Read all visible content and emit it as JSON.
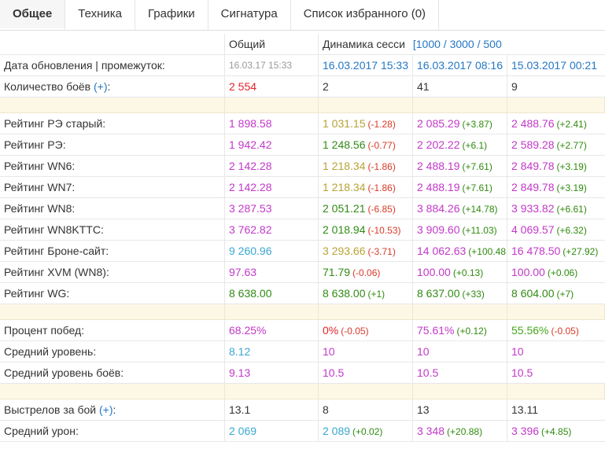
{
  "tabs": [
    "Общее",
    "Техника",
    "Графики",
    "Сигнатура",
    "Список избранного (0)"
  ],
  "header": {
    "general": "Общий",
    "dynamics": "Динамика сесси",
    "ranges": "[1000 / 3000 / 500"
  },
  "update": {
    "label": "Дата обновления | промежуток:",
    "general": "16.03.17 15:33",
    "s1": "16.03.2017 15:33",
    "s2": "16.03.2017 08:16",
    "s3": "15.03.2017 00:21"
  },
  "battles": {
    "label": "Количество боёв",
    "plus": "(+)",
    "colon": ":",
    "general": "2 554",
    "s1": "2",
    "s2": "41",
    "s3": "9"
  },
  "ratings": [
    {
      "label": "Рейтинг РЭ старый:",
      "general": "1 898.58",
      "s1": "1 031.15",
      "d1": "(-1.28)",
      "s2": "2 085.29",
      "d2": "(+3.87)",
      "s3": "2 488.76",
      "d3": "(+2.41)"
    },
    {
      "label": "Рейтинг РЭ:",
      "general": "1 942.42",
      "s1": "1 248.56",
      "d1": "(-0.77)",
      "s2": "2 202.22",
      "d2": "(+6.1)",
      "s3": "2 589.28",
      "d3": "(+2.77)"
    },
    {
      "label": "Рейтинг WN6:",
      "general": "2 142.28",
      "s1": "1 218.34",
      "d1": "(-1.86)",
      "s2": "2 488.19",
      "d2": "(+7.61)",
      "s3": "2 849.78",
      "d3": "(+3.19)"
    },
    {
      "label": "Рейтинг WN7:",
      "general": "2 142.28",
      "s1": "1 218.34",
      "d1": "(-1.86)",
      "s2": "2 488.19",
      "d2": "(+7.61)",
      "s3": "2 849.78",
      "d3": "(+3.19)"
    },
    {
      "label": "Рейтинг WN8:",
      "general": "3 287.53",
      "s1": "2 051.21",
      "d1": "(-6.85)",
      "s2": "3 884.26",
      "d2": "(+14.78)",
      "s3": "3 933.82",
      "d3": "(+6.61)"
    },
    {
      "label": "Рейтинг WN8KTTC:",
      "general": "3 762.82",
      "s1": "2 018.94",
      "d1": "(-10.53)",
      "s2": "3 909.60",
      "d2": "(+11.03)",
      "s3": "4 069.57",
      "d3": "(+6.32)"
    },
    {
      "label": "Рейтинг Броне-сайт:",
      "general": "9 260.96",
      "s1": "3 293.66",
      "d1": "(-3.71)",
      "s2": "14 062.63",
      "d2": "(+100.48",
      "s3": "16 478.50",
      "d3": "(+27.92)"
    },
    {
      "label": "Рейтинг XVM (WN8):",
      "general": "97.63",
      "s1": "71.79",
      "d1": "(-0.06)",
      "s2": "100.00",
      "d2": "(+0.13)",
      "s3": "100.00",
      "d3": "(+0.06)"
    },
    {
      "label": "Рейтинг WG:",
      "general": "8 638.00",
      "s1": "8 638.00",
      "d1": "(+1)",
      "s2": "8 637.00",
      "d2": "(+33)",
      "s3": "8 604.00",
      "d3": "(+7)"
    }
  ],
  "winrate": {
    "label": "Процент побед:",
    "general": "68.25%",
    "s1": "0%",
    "d1": "(-0.05)",
    "s2": "75.61%",
    "d2": "(+0.12)",
    "s3": "55.56%",
    "d3": "(-0.05)"
  },
  "avg_level": {
    "label": "Средний уровень:",
    "general": "8.12",
    "s1": "10",
    "s2": "10",
    "s3": "10"
  },
  "avg_battle_level": {
    "label": "Средний уровень боёв:",
    "general": "9.13",
    "s1": "10.5",
    "s2": "10.5",
    "s3": "10.5"
  },
  "shots": {
    "label": "Выстрелов за бой",
    "plus": "(+)",
    "colon": ":",
    "general": "13.1",
    "s1": "8",
    "s2": "13",
    "s3": "13.11"
  },
  "damage": {
    "label": "Средний урон:",
    "general": "2 069",
    "s1": "2 089",
    "d1": "(+0.02)",
    "s2": "3 348",
    "d2": "(+20.88)",
    "s3": "3 396",
    "d3": "(+4.85)"
  }
}
